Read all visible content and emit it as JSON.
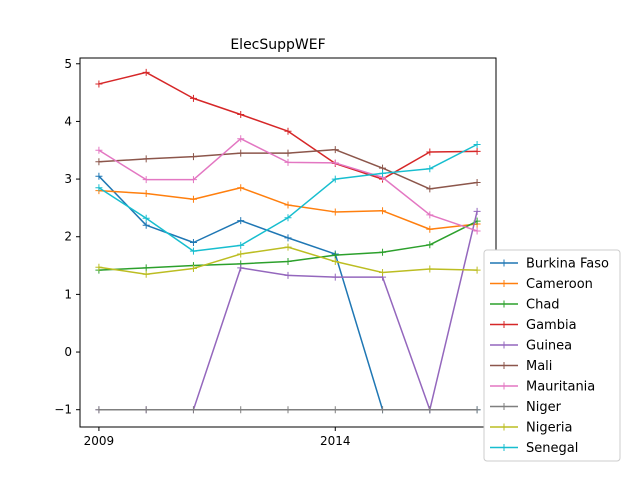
{
  "chart_data": {
    "type": "line",
    "title": "ElecSuppWEF",
    "xlabel": "",
    "ylabel": "",
    "x": [
      2009,
      2010,
      2011,
      2012,
      2013,
      2014,
      2015,
      2016,
      2017
    ],
    "xticks": [
      {
        "value": 2009,
        "label": "2009"
      },
      {
        "value": 2014,
        "label": "2014"
      }
    ],
    "yticks": [
      -1,
      0,
      1,
      2,
      3,
      4,
      5
    ],
    "xlim": [
      2008.6,
      2017.4
    ],
    "ylim": [
      -1.3,
      5.1
    ],
    "grid": false,
    "legend_position": "right",
    "series": [
      {
        "name": "Burkina Faso",
        "color": "#1f77b4",
        "values": [
          3.05,
          2.2,
          1.9,
          2.28,
          1.98,
          1.7,
          -1.0,
          -1.0,
          -1.0
        ]
      },
      {
        "name": "Cameroon",
        "color": "#ff7f0e",
        "values": [
          2.8,
          2.75,
          2.65,
          2.85,
          2.55,
          2.43,
          2.45,
          2.13,
          2.22
        ]
      },
      {
        "name": "Chad",
        "color": "#2ca02c",
        "values": [
          1.42,
          1.46,
          1.5,
          1.53,
          1.57,
          1.68,
          1.73,
          1.86,
          2.27
        ]
      },
      {
        "name": "Gambia",
        "color": "#d62728",
        "values": [
          4.65,
          4.85,
          4.4,
          4.12,
          3.83,
          3.27,
          3.0,
          3.47,
          3.48
        ]
      },
      {
        "name": "Guinea",
        "color": "#9467bd",
        "values": [
          -1.0,
          -1.0,
          -1.0,
          1.46,
          1.33,
          1.3,
          1.3,
          -1.0,
          2.44
        ]
      },
      {
        "name": "Mali",
        "color": "#8c564b",
        "values": [
          3.3,
          3.35,
          3.39,
          3.45,
          3.45,
          3.51,
          3.19,
          2.83,
          2.94
        ]
      },
      {
        "name": "Mauritania",
        "color": "#e377c2",
        "values": [
          3.5,
          2.99,
          2.99,
          3.7,
          3.29,
          3.28,
          3.03,
          2.38,
          2.1
        ]
      },
      {
        "name": "Niger",
        "color": "#7f7f7f",
        "values": [
          -1.0,
          -1.0,
          -1.0,
          -1.0,
          -1.0,
          -1.0,
          -1.0,
          -1.0,
          -1.0
        ]
      },
      {
        "name": "Nigeria",
        "color": "#bcbd22",
        "values": [
          1.47,
          1.35,
          1.45,
          1.7,
          1.82,
          1.57,
          1.38,
          1.44,
          1.42
        ]
      },
      {
        "name": "Senegal",
        "color": "#17becf",
        "values": [
          2.85,
          2.32,
          1.75,
          1.85,
          2.33,
          3.0,
          3.1,
          3.18,
          3.6
        ]
      }
    ]
  }
}
